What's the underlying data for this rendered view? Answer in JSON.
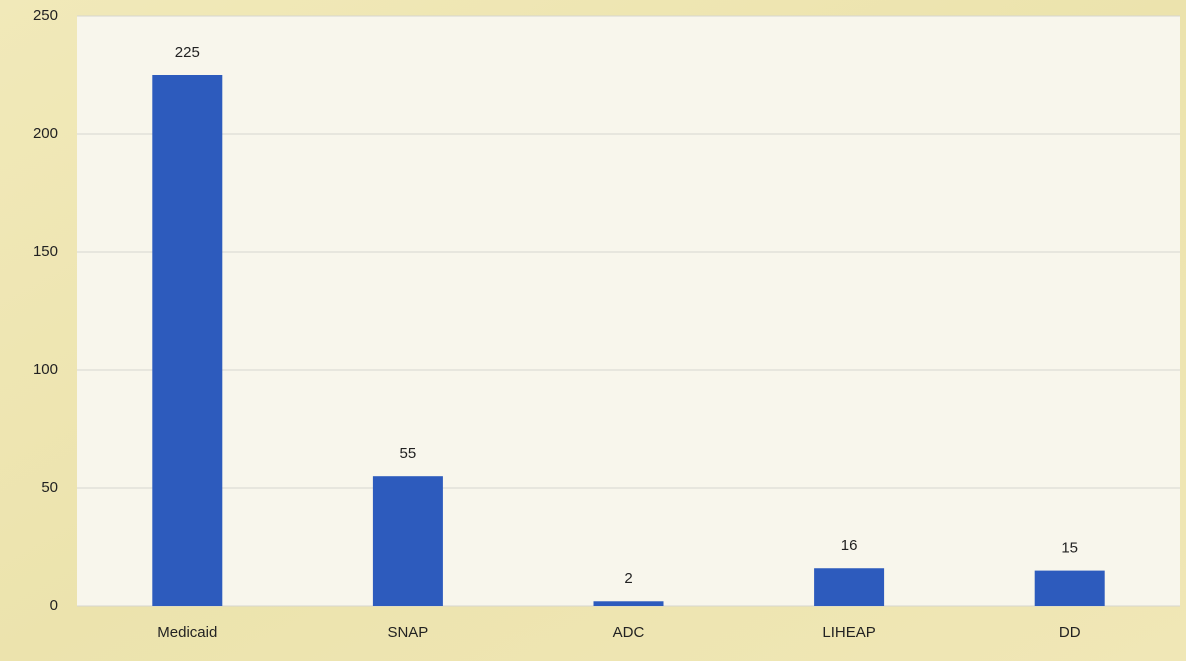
{
  "chart_data": {
    "type": "bar",
    "categories": [
      "Medicaid",
      "SNAP",
      "ADC",
      "LIHEAP",
      "DD"
    ],
    "values": [
      225,
      55,
      2,
      16,
      15
    ],
    "color": "#2d5bbd",
    "ylim": [
      0,
      250
    ],
    "yticks": [
      0,
      50,
      100,
      150,
      200,
      250
    ],
    "grid": true
  }
}
